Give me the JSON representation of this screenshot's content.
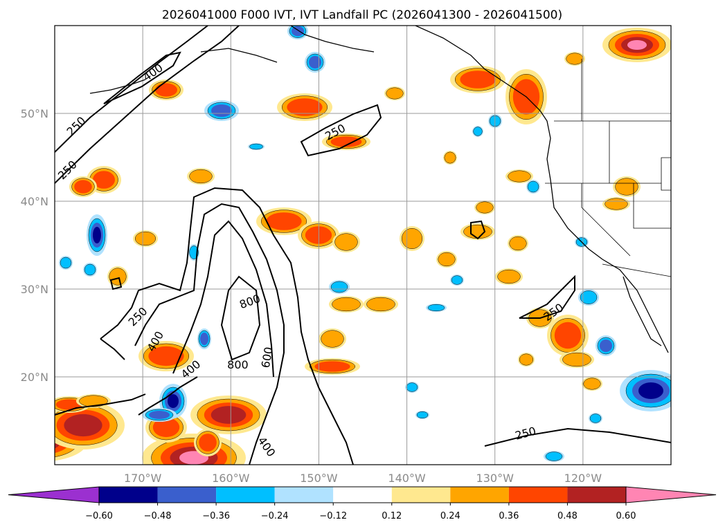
{
  "chart_data": {
    "type": "map-contour",
    "title": "2026041000 F000 IVT, IVT Landfall PC (2026041300 - 2026041500)",
    "map_extent": {
      "lon": [
        -180,
        -110
      ],
      "lat": [
        10,
        60
      ]
    },
    "lon_ticks": [
      {
        "value": -170,
        "label": "170°W"
      },
      {
        "value": -160,
        "label": "160°W"
      },
      {
        "value": -150,
        "label": "150°W"
      },
      {
        "value": -140,
        "label": "140°W"
      },
      {
        "value": -130,
        "label": "130°W"
      },
      {
        "value": -120,
        "label": "120°W"
      }
    ],
    "lat_ticks": [
      {
        "value": 50,
        "label": "50°N"
      },
      {
        "value": 40,
        "label": "40°N"
      },
      {
        "value": 30,
        "label": "30°N"
      },
      {
        "value": 20,
        "label": "20°N"
      }
    ],
    "grid": true,
    "ivt_contour_levels": [
      250,
      400,
      600,
      800
    ],
    "ivt_contour_labels": [
      {
        "text": "250",
        "lon": -177.5,
        "lat": 48.5,
        "angle": -45
      },
      {
        "text": "250",
        "lon": -178.5,
        "lat": 43.5,
        "angle": -45
      },
      {
        "text": "400",
        "lon": -168.8,
        "lat": 54.6,
        "angle": -35
      },
      {
        "text": "250",
        "lon": -148.1,
        "lat": 47.8,
        "angle": -28
      },
      {
        "text": "250",
        "lon": -170.5,
        "lat": 26.8,
        "angle": -45
      },
      {
        "text": "400",
        "lon": -168.5,
        "lat": 24.0,
        "angle": -60
      },
      {
        "text": "800",
        "lon": -157.8,
        "lat": 28.5,
        "angle": -20
      },
      {
        "text": "600",
        "lon": -155.8,
        "lat": 22.2,
        "angle": -80
      },
      {
        "text": "400",
        "lon": -164.5,
        "lat": 20.8,
        "angle": -40
      },
      {
        "text": "800",
        "lon": -159.2,
        "lat": 21.3,
        "angle": 0
      },
      {
        "text": "400",
        "lon": -156.0,
        "lat": 12.0,
        "angle": 55
      },
      {
        "text": "250",
        "lon": -123.3,
        "lat": 27.3,
        "angle": -35
      },
      {
        "text": "250",
        "lon": -126.5,
        "lat": 13.5,
        "angle": -15
      }
    ],
    "colorbar": {
      "orientation": "horizontal",
      "levels": [
        -0.6,
        -0.48,
        -0.36,
        -0.24,
        -0.12,
        0.12,
        0.24,
        0.36,
        0.48,
        0.6
      ],
      "tick_labels": [
        "−0.60",
        "−0.48",
        "−0.36",
        "−0.24",
        "−0.12",
        "0.12",
        "0.24",
        "0.36",
        "0.48",
        "0.60"
      ],
      "colors": [
        "#9b30d0",
        "#00008b",
        "#3a5fcd",
        "#00bfff",
        "#b0e2ff",
        "#ffffff",
        "#ffe88f",
        "#ffa500",
        "#ff4500",
        "#b22222",
        "#ff85b3"
      ],
      "extend": "both"
    }
  }
}
